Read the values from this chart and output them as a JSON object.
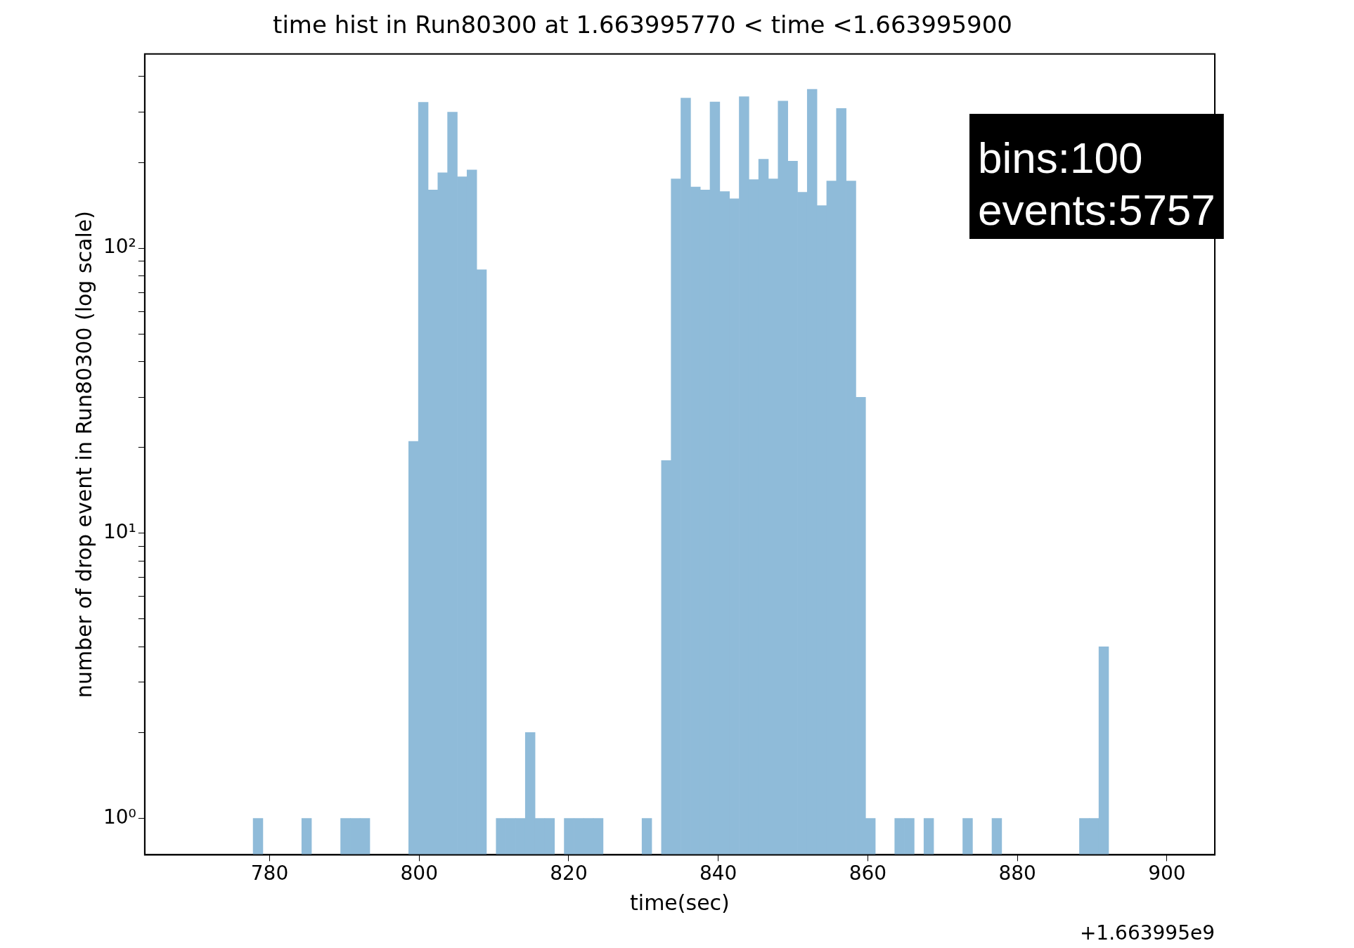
{
  "chart_data": {
    "type": "histogram",
    "title": "time hist in Run80300 at 1.663995770 < time <1.663995900",
    "xlabel": "time(sec)",
    "ylabel": "number of drop event in Run80300 (log scale)",
    "bins": [
      770,
      771.3,
      772.6,
      773.9,
      775.2,
      776.5,
      777.8,
      779.1,
      780.4,
      781.7,
      783,
      784.3,
      785.6,
      786.9,
      788.2,
      789.5,
      790.8,
      792.1,
      793.4,
      794.7,
      796,
      797.3,
      798.6,
      799.9,
      801.2,
      802.5,
      803.8,
      805.1,
      806.4,
      807.7,
      809,
      810.3,
      811.6,
      812.9,
      814.2,
      815.5,
      816.8,
      818.1,
      819.4,
      820.7,
      822,
      823.3,
      824.6,
      825.9,
      827.2,
      828.5,
      829.8,
      831.1,
      832.4,
      833.7,
      835,
      836.3,
      837.6,
      838.9,
      840.2,
      841.5,
      842.8,
      844.1,
      845.4,
      846.7,
      848,
      849.3,
      850.6,
      851.9,
      853.2,
      854.5,
      855.8,
      857.1,
      858.4,
      859.7,
      861,
      862.3,
      863.6,
      864.9,
      866.2,
      867.5,
      868.8,
      870.1,
      871.4,
      872.7,
      874,
      875.3,
      876.6,
      877.9,
      879.2,
      880.5,
      881.8,
      883.1,
      884.4,
      885.7,
      887,
      888.3,
      889.6,
      890.9,
      892.2,
      893.5,
      894.8,
      896.1,
      897.4,
      898.7,
      900
    ],
    "values": [
      null,
      null,
      null,
      null,
      null,
      null,
      1,
      null,
      null,
      null,
      null,
      1,
      null,
      null,
      null,
      1,
      1,
      1,
      null,
      null,
      null,
      null,
      21,
      325,
      160,
      184,
      300,
      178,
      188,
      84,
      null,
      1,
      1,
      1,
      2,
      1,
      1,
      null,
      1,
      1,
      1,
      1,
      null,
      null,
      null,
      null,
      1,
      null,
      18,
      175,
      336,
      164,
      160,
      326,
      158,
      149,
      340,
      174,
      205,
      175,
      328,
      202,
      157,
      361,
      141,
      172,
      309,
      172,
      30,
      1,
      null,
      null,
      1,
      1,
      null,
      1,
      null,
      null,
      null,
      1,
      null,
      null,
      1,
      null,
      null,
      null,
      null,
      null,
      null,
      null,
      null,
      1,
      1,
      4,
      null,
      null,
      null,
      null,
      null,
      null
    ],
    "color": "#8fbbd9",
    "log": true,
    "grid": false,
    "legend": false,
    "xlim": [
      763.3,
      906.4
    ],
    "xticks": [
      780,
      800,
      820,
      840,
      860,
      880,
      900
    ],
    "ylim": [
      0.745,
      480
    ],
    "yticks": [
      {
        "value": 1,
        "label": "10⁰"
      },
      {
        "value": 2,
        "label": null
      },
      {
        "value": 3,
        "label": null
      },
      {
        "value": 4,
        "label": null
      },
      {
        "value": 5,
        "label": null
      },
      {
        "value": 6,
        "label": null
      },
      {
        "value": 7,
        "label": null
      },
      {
        "value": 8,
        "label": null
      },
      {
        "value": 9,
        "label": null
      },
      {
        "value": 10,
        "label": "10¹"
      },
      {
        "value": 20,
        "label": null
      },
      {
        "value": 30,
        "label": null
      },
      {
        "value": 40,
        "label": null
      },
      {
        "value": 50,
        "label": null
      },
      {
        "value": 60,
        "label": null
      },
      {
        "value": 70,
        "label": null
      },
      {
        "value": 80,
        "label": null
      },
      {
        "value": 90,
        "label": null
      },
      {
        "value": 100,
        "label": "10²"
      },
      {
        "value": 200,
        "label": null
      },
      {
        "value": 300,
        "label": null
      },
      {
        "value": 400,
        "label": null
      }
    ],
    "annotations": [
      "bins:100\nevents:5757",
      "+1.663995e9"
    ]
  }
}
